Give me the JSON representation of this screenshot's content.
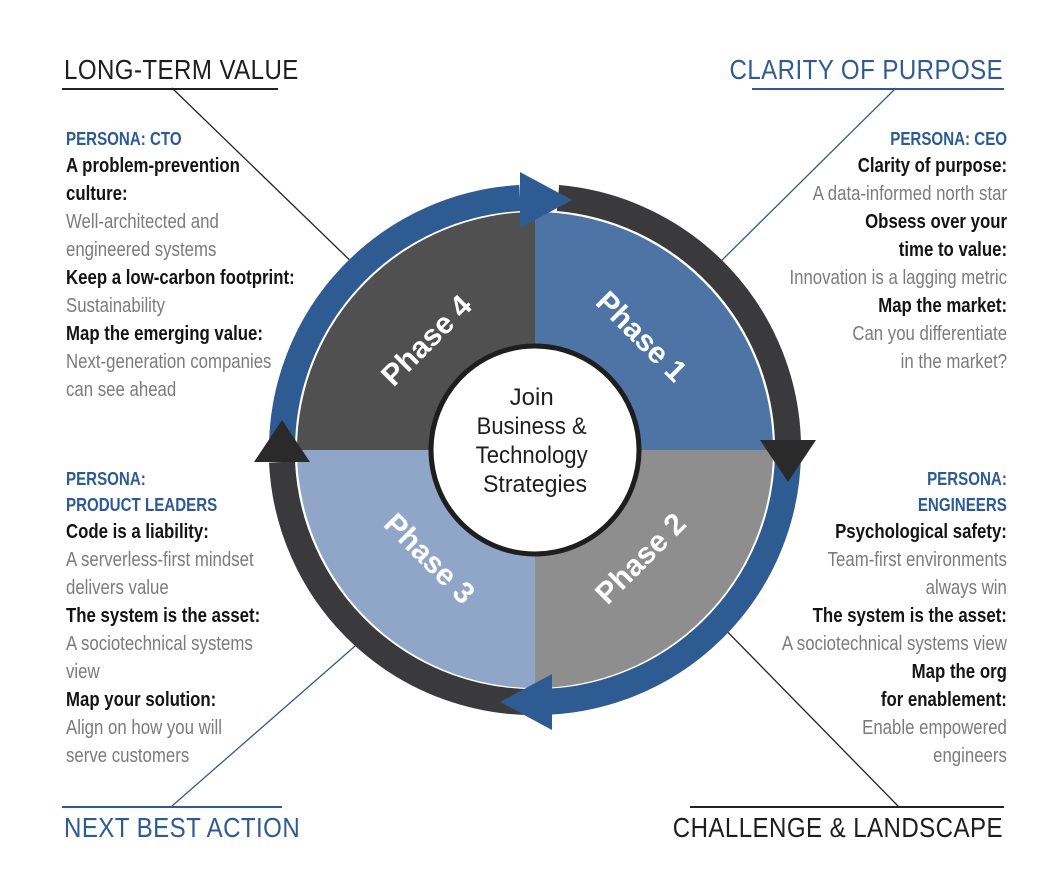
{
  "corners": {
    "top_left": "LONG-TERM VALUE",
    "top_right": "CLARITY OF PURPOSE",
    "bottom_left": "NEXT BEST ACTION",
    "bottom_right": "CHALLENGE & LANDSCAPE"
  },
  "center": {
    "lines": [
      "Join",
      "Business &",
      "Technology",
      "Strategies"
    ]
  },
  "phases": {
    "p1": "Phase 1",
    "p2": "Phase 2",
    "p3": "Phase 3",
    "p4": "Phase 4"
  },
  "personas": {
    "cto": {
      "persona": "PERSONA: CTO",
      "lines": [
        {
          "kind": "head",
          "text": "A problem-prevention"
        },
        {
          "kind": "head",
          "text": "culture:"
        },
        {
          "kind": "desc",
          "text": "Well-architected and"
        },
        {
          "kind": "desc",
          "text": "engineered systems"
        },
        {
          "kind": "head",
          "text": "Keep a low-carbon footprint:"
        },
        {
          "kind": "desc",
          "text": "Sustainability"
        },
        {
          "kind": "head",
          "text": "Map the emerging value:"
        },
        {
          "kind": "desc",
          "text": "Next-generation companies"
        },
        {
          "kind": "desc",
          "text": "can see ahead"
        }
      ]
    },
    "ceo": {
      "persona": "PERSONA: CEO",
      "lines": [
        {
          "kind": "head",
          "text": "Clarity of purpose:"
        },
        {
          "kind": "desc",
          "text": "A data-informed north star"
        },
        {
          "kind": "head",
          "text": "Obsess over your"
        },
        {
          "kind": "head",
          "text": "time to value:"
        },
        {
          "kind": "desc",
          "text": "Innovation is a lagging metric"
        },
        {
          "kind": "head",
          "text": "Map the market:"
        },
        {
          "kind": "desc",
          "text": "Can you differentiate"
        },
        {
          "kind": "desc",
          "text": "in the market?"
        }
      ]
    },
    "product": {
      "persona_lines": [
        "PERSONA:",
        "PRODUCT LEADERS"
      ],
      "lines": [
        {
          "kind": "head",
          "text": "Code is a liability:"
        },
        {
          "kind": "desc",
          "text": "A serverless-first mindset"
        },
        {
          "kind": "desc",
          "text": "delivers value"
        },
        {
          "kind": "head",
          "text": "The system is the asset:"
        },
        {
          "kind": "desc",
          "text": "A sociotechnical systems"
        },
        {
          "kind": "desc",
          "text": "view"
        },
        {
          "kind": "head",
          "text": "Map your solution:"
        },
        {
          "kind": "desc",
          "text": "Align on how you will"
        },
        {
          "kind": "desc",
          "text": "serve customers"
        }
      ]
    },
    "engineers": {
      "persona_lines": [
        "PERSONA:",
        "ENGINEERS"
      ],
      "lines": [
        {
          "kind": "head",
          "text": "Psychological safety:"
        },
        {
          "kind": "desc",
          "text": "Team-first environments"
        },
        {
          "kind": "desc",
          "text": "always win"
        },
        {
          "kind": "head",
          "text": "The system is the asset:"
        },
        {
          "kind": "desc",
          "text": "A sociotechnical systems view"
        },
        {
          "kind": "head",
          "text": "Map the org"
        },
        {
          "kind": "head",
          "text": "for enablement:"
        },
        {
          "kind": "desc",
          "text": "Enable empowered"
        },
        {
          "kind": "desc",
          "text": "engineers"
        }
      ]
    }
  },
  "colors": {
    "phase1": "#4e73a5",
    "phase2": "#8e8e8e",
    "phase3": "#8fa6c8",
    "phase4": "#505050",
    "arrow_blue": "#2f5b93",
    "arrow_dark": "#2a2a2a",
    "persona_blue": "#2c5a92"
  }
}
